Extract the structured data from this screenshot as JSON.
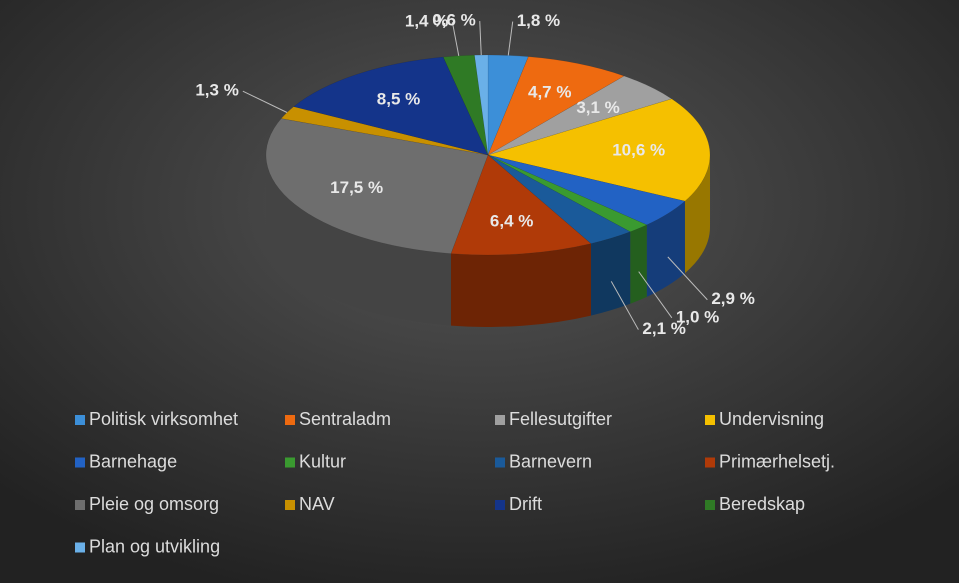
{
  "chart_data": {
    "type": "pie3d",
    "categories": [
      "Politisk virksomhet",
      "Sentraladm",
      "Fellesutgifter",
      "Undervisning",
      "Barnehage",
      "Kultur",
      "Barnevern",
      "Primærhelsetj.",
      "Pleie og omsorg",
      "NAV",
      "Drift",
      "Beredskap",
      "Plan og utvikling"
    ],
    "values": [
      1.8,
      4.7,
      3.1,
      10.6,
      2.9,
      1.0,
      2.1,
      6.4,
      17.5,
      1.3,
      8.5,
      1.4,
      0.6
    ],
    "value_labels": [
      "1,8 %",
      "4,7 %",
      "3,1 %",
      "10,6 %",
      "2,9 %",
      "1,0 %",
      "2,1 %",
      "6,4 %",
      "17,5 %",
      "1,3 %",
      "8,5 %",
      "1,4 %",
      "0,6 %"
    ],
    "colors": [
      "#3c8fd8",
      "#ee6a10",
      "#a0a0a0",
      "#f5c000",
      "#2262c4",
      "#3a9a30",
      "#1a5a9a",
      "#b03a08",
      "#6e6e6e",
      "#c89000",
      "#14348a",
      "#2f7a25",
      "#6ab0e8"
    ],
    "legend": "bottom"
  }
}
